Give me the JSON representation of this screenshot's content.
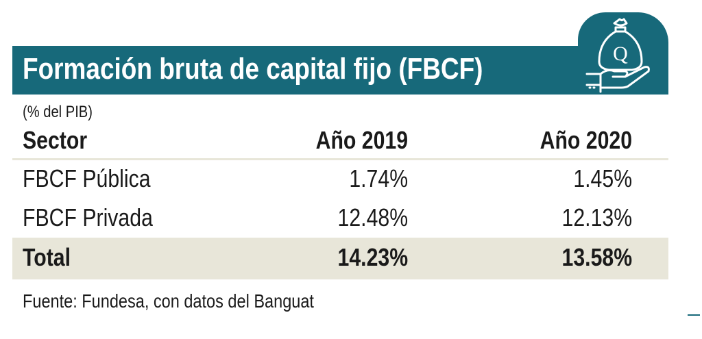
{
  "title": "Formación bruta de capital fijo (FBCF)",
  "unit": "(% del PIB)",
  "icon": "money-bag-hand-icon",
  "colors": {
    "header": "#17697a",
    "total_band": "#e8e6d9"
  },
  "columns": [
    "Sector",
    "Año 2019",
    "Año 2020"
  ],
  "rows": [
    {
      "sector": "FBCF Pública",
      "y2019": "1.74%",
      "y2020": "1.45%"
    },
    {
      "sector": "FBCF Privada",
      "y2019": "12.48%",
      "y2020": "12.13%"
    }
  ],
  "total": {
    "sector": "Total",
    "y2019": "14.23%",
    "y2020": "13.58%"
  },
  "source": "Fuente: Fundesa, con datos del Banguat",
  "chart_data": {
    "type": "table",
    "title": "Formación bruta de capital fijo (FBCF)",
    "subtitle": "(% del PIB)",
    "categories": [
      "FBCF Pública",
      "FBCF Privada",
      "Total"
    ],
    "series": [
      {
        "name": "Año 2019",
        "values": [
          1.74,
          12.48,
          14.23
        ]
      },
      {
        "name": "Año 2020",
        "values": [
          1.45,
          12.13,
          13.58
        ]
      }
    ]
  }
}
